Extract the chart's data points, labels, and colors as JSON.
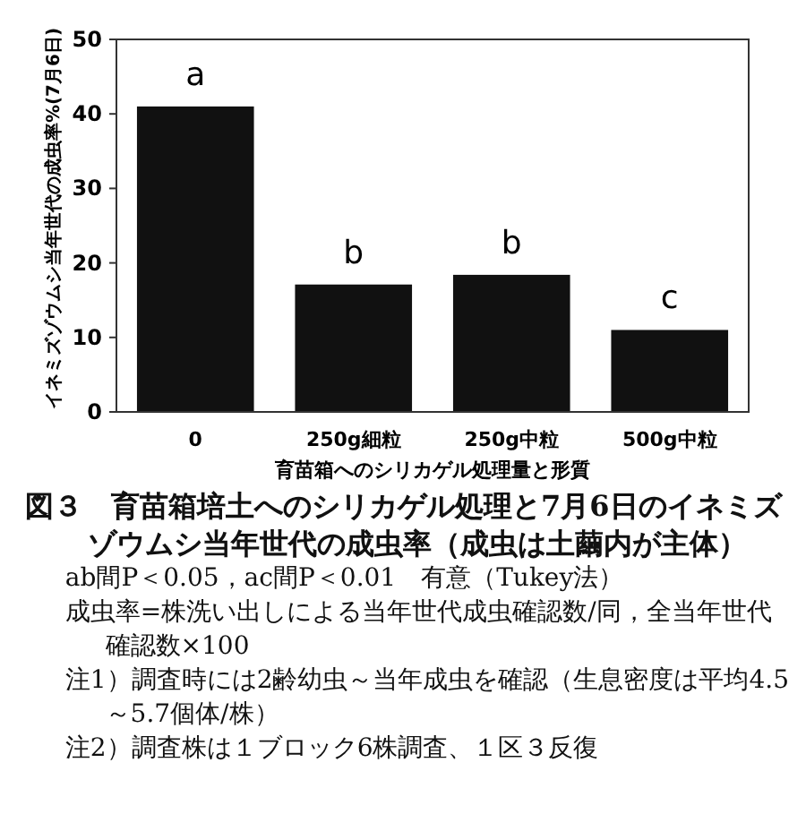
{
  "chart_data": {
    "type": "bar",
    "title": "図３　育苗箱培土へのシリカゲル処理と7月6日のイネミズゾウムシ当年世代の成虫率（成虫は土繭内が主体）",
    "xlabel": "育苗箱へのシリカゲル処理量と形質",
    "ylabel": "イネミズゾウムシ当年世代の成虫率%(7月6日)",
    "categories": [
      "0",
      "250g細粒",
      "250g中粒",
      "500g中粒"
    ],
    "values": [
      41,
      17.1,
      18.4,
      11
    ],
    "color": "#111111",
    "ylim": [
      0,
      50
    ],
    "yticks": [
      0,
      10,
      20,
      30,
      40,
      50
    ],
    "grid": false,
    "annotations": [
      {
        "text": "a",
        "x": "0",
        "y": 41
      },
      {
        "text": "b",
        "x": "250g細粒",
        "y": 17.1
      },
      {
        "text": "b",
        "x": "250g中粒",
        "y": 18.4
      },
      {
        "text": "c",
        "x": "500g中粒",
        "y": 11
      },
      "ab間P＜0.05，ac間P＜0.01　有意（Tukey法）",
      "成虫率=株洗い出しによる当年世代成虫確認数/同，全当年世代確認数×100",
      "注1）調査時には2齢幼虫～当年成虫を確認（生息密度は平均4.5～5.7個体/株）",
      "注2）調査株は１ブロック6株調査、１区３反復"
    ]
  }
}
